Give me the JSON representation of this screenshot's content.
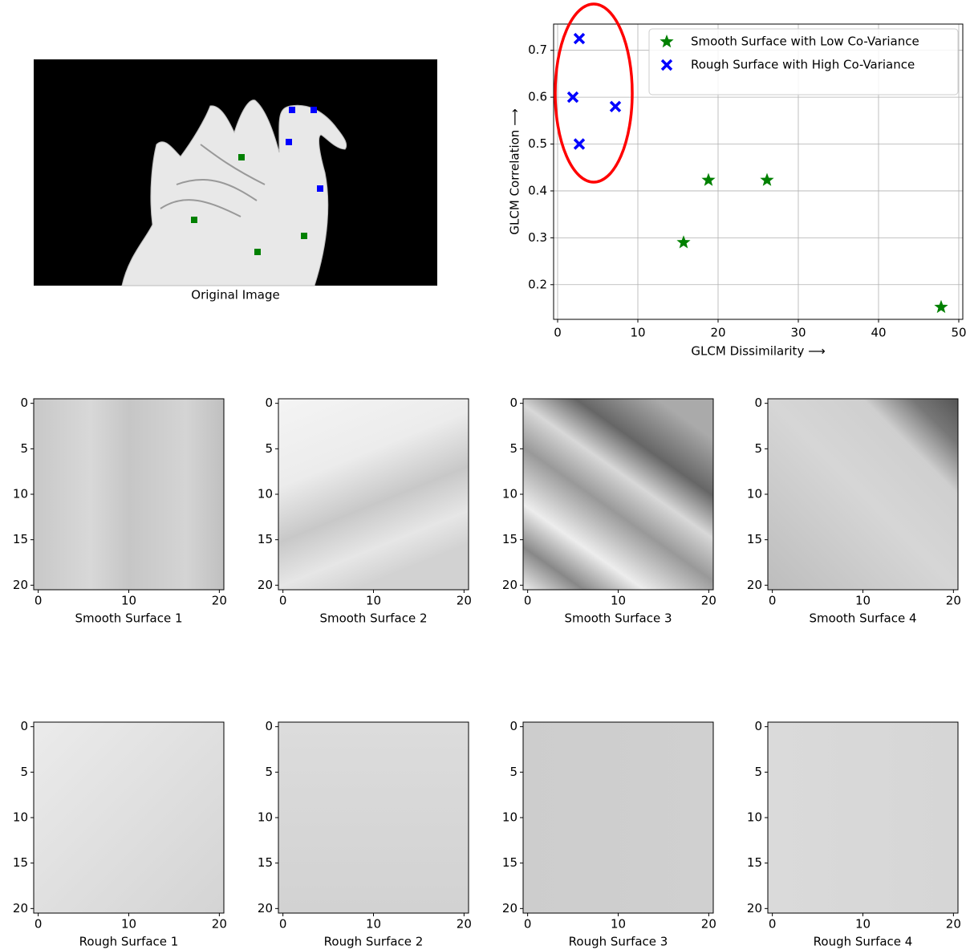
{
  "chart_data": [
    {
      "type": "image",
      "xlabel": "Original Image"
    },
    {
      "type": "scatter",
      "xlabel": "GLCM Dissimilarity ⟶",
      "ylabel": "GLCM Correlation ⟶",
      "xlim": [
        -0.5,
        50.5
      ],
      "ylim": [
        0.126,
        0.756
      ],
      "xticks": [
        0,
        10,
        20,
        30,
        40,
        50
      ],
      "yticks": [
        0.2,
        0.3,
        0.4,
        0.5,
        0.6,
        0.7
      ],
      "grid": true,
      "legend": "upper right",
      "series": [
        {
          "name": "Smooth Surface with Low Co-Variance",
          "color": "#008000",
          "marker": "star",
          "x": [
            15.7,
            18.8,
            26.1,
            47.8
          ],
          "values": [
            0.29,
            0.423,
            0.423,
            0.152
          ]
        },
        {
          "name": "Rough Surface with High Co-Variance",
          "color": "#0000ff",
          "marker": "x",
          "x": [
            2.7,
            1.9,
            7.2,
            2.7
          ],
          "values": [
            0.725,
            0.6,
            0.58,
            0.5
          ]
        }
      ]
    },
    {
      "type": "image",
      "xlabel": "Smooth Surface 1",
      "xlim": [
        -0.5,
        20.5
      ],
      "ylim": [
        20.5,
        -0.5
      ],
      "xticks": [
        0,
        10,
        20
      ],
      "yticks": [
        0,
        5,
        10,
        15,
        20
      ]
    },
    {
      "type": "image",
      "xlabel": "Smooth Surface 2",
      "xlim": [
        -0.5,
        20.5
      ],
      "ylim": [
        20.5,
        -0.5
      ],
      "xticks": [
        0,
        10,
        20
      ],
      "yticks": [
        0,
        5,
        10,
        15,
        20
      ]
    },
    {
      "type": "image",
      "xlabel": "Smooth Surface 3",
      "xlim": [
        -0.5,
        20.5
      ],
      "ylim": [
        20.5,
        -0.5
      ],
      "xticks": [
        0,
        10,
        20
      ],
      "yticks": [
        0,
        5,
        10,
        15,
        20
      ]
    },
    {
      "type": "image",
      "xlabel": "Smooth Surface 4",
      "xlim": [
        -0.5,
        20.5
      ],
      "ylim": [
        20.5,
        -0.5
      ],
      "xticks": [
        0,
        10,
        20
      ],
      "yticks": [
        0,
        5,
        10,
        15,
        20
      ]
    },
    {
      "type": "image",
      "xlabel": "Rough Surface 1",
      "xlim": [
        -0.5,
        20.5
      ],
      "ylim": [
        20.5,
        -0.5
      ],
      "xticks": [
        0,
        10,
        20
      ],
      "yticks": [
        0,
        5,
        10,
        15,
        20
      ]
    },
    {
      "type": "image",
      "xlabel": "Rough Surface 2",
      "xlim": [
        -0.5,
        20.5
      ],
      "ylim": [
        20.5,
        -0.5
      ],
      "xticks": [
        0,
        10,
        20
      ],
      "yticks": [
        0,
        5,
        10,
        15,
        20
      ]
    },
    {
      "type": "image",
      "xlabel": "Rough Surface 3",
      "xlim": [
        -0.5,
        20.5
      ],
      "ylim": [
        20.5,
        -0.5
      ],
      "xticks": [
        0,
        10,
        20
      ],
      "yticks": [
        0,
        5,
        10,
        15,
        20
      ]
    },
    {
      "type": "image",
      "xlabel": "Rough Surface 4",
      "xlim": [
        -0.5,
        20.5
      ],
      "ylim": [
        20.5,
        -0.5
      ],
      "xticks": [
        0,
        10,
        20
      ],
      "yticks": [
        0,
        5,
        10,
        15,
        20
      ]
    }
  ]
}
